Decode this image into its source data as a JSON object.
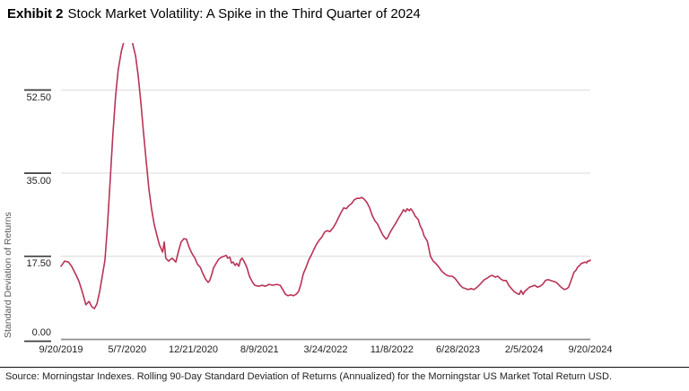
{
  "title": {
    "exhibit": "Exhibit 2",
    "text": "Stock Market Volatility: A Spike in the Third Quarter of 2024"
  },
  "source": "Source: Morningstar Indexes. Rolling 90-Day Standard Deviation of Returns (Annualized) for the Morningstar US Market Total Return USD.",
  "colors": {
    "line": "#b93356",
    "grid": "#e3e3e3",
    "axis": "#8f8f8f",
    "tick_stub": "#3f3f3f"
  },
  "chart_data": {
    "type": "line",
    "title": "Stock Market Volatility: A Spike in the Third Quarter of 2024",
    "ylabel": "Standard Deviation of Returns",
    "xlabel": "",
    "legend": "none",
    "grid": "horizontal",
    "y_ticks": [
      0,
      17.5,
      35,
      52.5
    ],
    "y_tick_labels": [
      "0.00",
      "17.50",
      "35.00",
      "52.50"
    ],
    "ylim": [
      0,
      62.4
    ],
    "x_tick_labels": [
      "9/20/2019",
      "5/7/2020",
      "12/21/2020",
      "8/9/2021",
      "3/24/2022",
      "11/8/2022",
      "6/28/2023",
      "2/5/2024",
      "9/20/2024"
    ],
    "x_range_note": "x stored as fraction 0-1 of span 9/20/2019 to 9/20/2024",
    "series": [
      {
        "name": "Rolling 90-Day Std Dev (Annualized), Morningstar US Market TR USD",
        "points": [
          [
            0.0,
            15.4
          ],
          [
            0.007,
            16.5
          ],
          [
            0.014,
            16.3
          ],
          [
            0.02,
            15.4
          ],
          [
            0.027,
            13.9
          ],
          [
            0.034,
            12.2
          ],
          [
            0.041,
            9.7
          ],
          [
            0.047,
            7.3
          ],
          [
            0.053,
            8.0
          ],
          [
            0.058,
            6.9
          ],
          [
            0.063,
            6.5
          ],
          [
            0.068,
            7.5
          ],
          [
            0.073,
            10.1
          ],
          [
            0.078,
            13.3
          ],
          [
            0.083,
            16.7
          ],
          [
            0.088,
            24.3
          ],
          [
            0.093,
            33.7
          ],
          [
            0.098,
            43.1
          ],
          [
            0.103,
            51.1
          ],
          [
            0.108,
            56.7
          ],
          [
            0.114,
            60.7
          ],
          [
            0.119,
            62.8
          ],
          [
            0.124,
            64.5
          ],
          [
            0.131,
            64.5
          ],
          [
            0.136,
            62.0
          ],
          [
            0.141,
            59.6
          ],
          [
            0.146,
            55.4
          ],
          [
            0.151,
            49.7
          ],
          [
            0.156,
            43.5
          ],
          [
            0.161,
            37.5
          ],
          [
            0.166,
            31.8
          ],
          [
            0.171,
            27.5
          ],
          [
            0.176,
            24.3
          ],
          [
            0.181,
            22.0
          ],
          [
            0.186,
            19.9
          ],
          [
            0.192,
            18.4
          ],
          [
            0.195,
            20.5
          ],
          [
            0.198,
            17.1
          ],
          [
            0.203,
            16.5
          ],
          [
            0.21,
            17.1
          ],
          [
            0.217,
            16.3
          ],
          [
            0.222,
            18.6
          ],
          [
            0.227,
            20.5
          ],
          [
            0.232,
            21.2
          ],
          [
            0.237,
            21.1
          ],
          [
            0.242,
            19.4
          ],
          [
            0.247,
            18.2
          ],
          [
            0.253,
            17.1
          ],
          [
            0.258,
            15.8
          ],
          [
            0.263,
            15.2
          ],
          [
            0.268,
            13.9
          ],
          [
            0.273,
            12.7
          ],
          [
            0.278,
            12.0
          ],
          [
            0.281,
            12.4
          ],
          [
            0.285,
            13.7
          ],
          [
            0.288,
            15.0
          ],
          [
            0.293,
            16.0
          ],
          [
            0.298,
            16.9
          ],
          [
            0.303,
            17.3
          ],
          [
            0.308,
            17.5
          ],
          [
            0.312,
            17.7
          ],
          [
            0.315,
            17.1
          ],
          [
            0.319,
            17.3
          ],
          [
            0.322,
            16.1
          ],
          [
            0.325,
            16.3
          ],
          [
            0.329,
            15.6
          ],
          [
            0.332,
            16.0
          ],
          [
            0.336,
            15.4
          ],
          [
            0.339,
            16.7
          ],
          [
            0.342,
            17.1
          ],
          [
            0.346,
            16.4
          ],
          [
            0.351,
            15.2
          ],
          [
            0.356,
            13.3
          ],
          [
            0.361,
            12.2
          ],
          [
            0.366,
            11.4
          ],
          [
            0.373,
            11.2
          ],
          [
            0.38,
            11.4
          ],
          [
            0.386,
            11.2
          ],
          [
            0.393,
            11.6
          ],
          [
            0.4,
            11.4
          ],
          [
            0.407,
            11.6
          ],
          [
            0.414,
            11.4
          ],
          [
            0.419,
            10.5
          ],
          [
            0.424,
            9.5
          ],
          [
            0.429,
            9.2
          ],
          [
            0.434,
            9.4
          ],
          [
            0.439,
            9.2
          ],
          [
            0.444,
            9.5
          ],
          [
            0.449,
            10.1
          ],
          [
            0.453,
            11.6
          ],
          [
            0.458,
            13.9
          ],
          [
            0.463,
            15.2
          ],
          [
            0.468,
            16.7
          ],
          [
            0.473,
            17.8
          ],
          [
            0.478,
            19.0
          ],
          [
            0.483,
            20.1
          ],
          [
            0.488,
            20.9
          ],
          [
            0.493,
            21.6
          ],
          [
            0.498,
            22.6
          ],
          [
            0.503,
            22.9
          ],
          [
            0.508,
            22.7
          ],
          [
            0.514,
            23.5
          ],
          [
            0.519,
            24.4
          ],
          [
            0.524,
            25.6
          ],
          [
            0.529,
            26.7
          ],
          [
            0.534,
            27.7
          ],
          [
            0.539,
            27.5
          ],
          [
            0.544,
            28.2
          ],
          [
            0.549,
            28.6
          ],
          [
            0.554,
            29.4
          ],
          [
            0.559,
            29.7
          ],
          [
            0.564,
            29.7
          ],
          [
            0.568,
            29.9
          ],
          [
            0.573,
            29.5
          ],
          [
            0.578,
            28.8
          ],
          [
            0.583,
            27.7
          ],
          [
            0.588,
            26.1
          ],
          [
            0.593,
            25.0
          ],
          [
            0.598,
            24.3
          ],
          [
            0.603,
            23.1
          ],
          [
            0.608,
            22.0
          ],
          [
            0.614,
            21.1
          ],
          [
            0.617,
            21.4
          ],
          [
            0.622,
            22.6
          ],
          [
            0.627,
            23.5
          ],
          [
            0.632,
            24.4
          ],
          [
            0.637,
            25.4
          ],
          [
            0.642,
            26.3
          ],
          [
            0.647,
            27.3
          ],
          [
            0.651,
            26.9
          ],
          [
            0.654,
            27.5
          ],
          [
            0.658,
            27.1
          ],
          [
            0.661,
            27.5
          ],
          [
            0.666,
            26.7
          ],
          [
            0.669,
            26.0
          ],
          [
            0.675,
            25.2
          ],
          [
            0.678,
            24.1
          ],
          [
            0.683,
            22.9
          ],
          [
            0.686,
            21.8
          ],
          [
            0.692,
            20.7
          ],
          [
            0.695,
            19.2
          ],
          [
            0.698,
            17.5
          ],
          [
            0.703,
            16.5
          ],
          [
            0.708,
            16.0
          ],
          [
            0.714,
            15.2
          ],
          [
            0.719,
            14.4
          ],
          [
            0.724,
            13.9
          ],
          [
            0.729,
            13.5
          ],
          [
            0.734,
            13.3
          ],
          [
            0.739,
            13.3
          ],
          [
            0.744,
            12.9
          ],
          [
            0.749,
            12.2
          ],
          [
            0.754,
            11.4
          ],
          [
            0.759,
            10.9
          ],
          [
            0.764,
            10.7
          ],
          [
            0.769,
            10.5
          ],
          [
            0.775,
            10.7
          ],
          [
            0.78,
            10.5
          ],
          [
            0.785,
            10.9
          ],
          [
            0.79,
            11.4
          ],
          [
            0.795,
            12.0
          ],
          [
            0.8,
            12.6
          ],
          [
            0.805,
            12.9
          ],
          [
            0.81,
            13.3
          ],
          [
            0.815,
            13.5
          ],
          [
            0.82,
            13.1
          ],
          [
            0.825,
            13.3
          ],
          [
            0.831,
            12.7
          ],
          [
            0.836,
            12.4
          ],
          [
            0.841,
            12.4
          ],
          [
            0.846,
            11.4
          ],
          [
            0.851,
            10.7
          ],
          [
            0.856,
            10.1
          ],
          [
            0.861,
            9.7
          ],
          [
            0.866,
            9.5
          ],
          [
            0.869,
            10.3
          ],
          [
            0.873,
            9.5
          ],
          [
            0.876,
            10.1
          ],
          [
            0.88,
            10.5
          ],
          [
            0.885,
            11.0
          ],
          [
            0.89,
            11.2
          ],
          [
            0.895,
            11.4
          ],
          [
            0.9,
            11.0
          ],
          [
            0.905,
            11.2
          ],
          [
            0.91,
            11.6
          ],
          [
            0.915,
            12.4
          ],
          [
            0.92,
            12.6
          ],
          [
            0.925,
            12.4
          ],
          [
            0.931,
            12.2
          ],
          [
            0.936,
            12.0
          ],
          [
            0.941,
            11.4
          ],
          [
            0.946,
            10.9
          ],
          [
            0.951,
            10.5
          ],
          [
            0.956,
            10.7
          ],
          [
            0.959,
            11.0
          ],
          [
            0.963,
            12.2
          ],
          [
            0.966,
            13.1
          ],
          [
            0.969,
            14.1
          ],
          [
            0.973,
            14.6
          ],
          [
            0.976,
            15.2
          ],
          [
            0.98,
            15.6
          ],
          [
            0.983,
            16.0
          ],
          [
            0.986,
            16.1
          ],
          [
            0.99,
            16.3
          ],
          [
            0.993,
            16.1
          ],
          [
            0.995,
            16.5
          ],
          [
            0.998,
            16.5
          ],
          [
            1.0,
            16.7
          ]
        ]
      }
    ]
  }
}
